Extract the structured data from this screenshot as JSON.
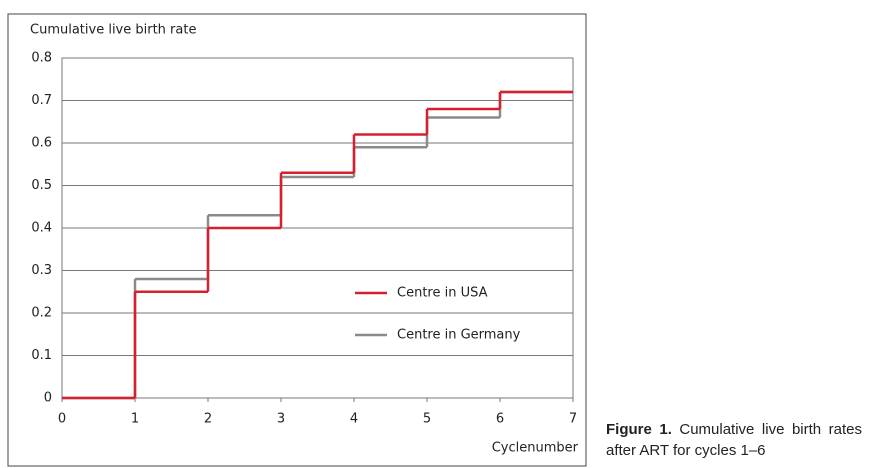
{
  "chart_data": {
    "type": "step",
    "y_label": "Cumulative live birth rate",
    "x_label": "Cyclenumber",
    "x": [
      0,
      1,
      2,
      3,
      4,
      5,
      6,
      7
    ],
    "series": [
      {
        "name": "Centre in USA",
        "color": "#d6202f",
        "values": [
          0,
          0.25,
          0.4,
          0.53,
          0.62,
          0.68,
          0.72,
          0.72
        ]
      },
      {
        "name": "Centre in Germany",
        "color": "#8a8a8a",
        "values": [
          0,
          0.28,
          0.43,
          0.52,
          0.59,
          0.66,
          0.72,
          0.72
        ]
      }
    ],
    "xlim": [
      0,
      7
    ],
    "xticks": [
      0,
      1,
      2,
      3,
      4,
      5,
      6,
      7
    ],
    "ylim": [
      0,
      0.8
    ],
    "yticks": [
      0,
      0.1,
      0.2,
      0.3,
      0.4,
      0.5,
      0.6,
      0.7,
      0.8
    ],
    "grid": true,
    "legend": "right"
  },
  "caption": {
    "label": "Figure 1.",
    "text": "Cumulative live birth rates after ART for cycles 1–6"
  }
}
